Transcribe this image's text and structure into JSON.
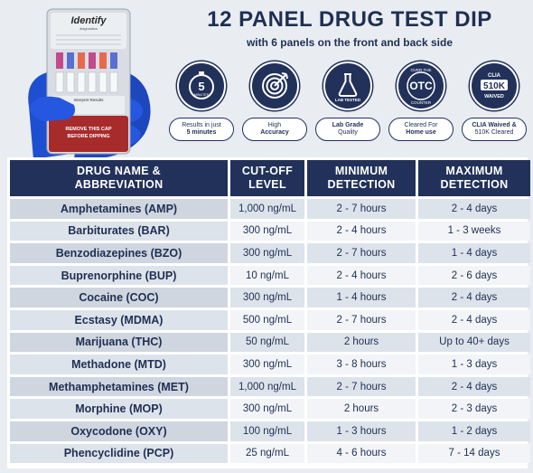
{
  "product": {
    "brand": "Identify",
    "brand_sub": "diagnostics",
    "strip_banner": "REMOVE THIS CAP BEFORE DIPPING",
    "result_label": "Interpret Results"
  },
  "header": {
    "title": "12 PANEL DRUG TEST DIP",
    "subtitle": "with 6 panels on the front and back side"
  },
  "badges": [
    {
      "icon": "stopwatch-icon",
      "circle_text": "5",
      "circle_sub": "MINUTES",
      "line1": "Results in just",
      "line2": "5 minutes"
    },
    {
      "icon": "target-icon",
      "circle_text": "",
      "circle_sub": "",
      "line1": "High",
      "line2": "Accuracy"
    },
    {
      "icon": "flask-icon",
      "circle_text": "",
      "circle_sub": "LAB TESTED",
      "line1": "Lab Grade",
      "line2": "Quality"
    },
    {
      "icon": "otc-seal-icon",
      "circle_text": "OTC",
      "circle_sub": "OVER THE COUNTER",
      "line1": "Cleared For",
      "line2": "Home use"
    },
    {
      "icon": "clia-seal-icon",
      "circle_text": "510K",
      "circle_sub": "CLIA WAIVED",
      "line1": "CLIA Waived &",
      "line2": "510K Cleared"
    }
  ],
  "table": {
    "headers": [
      [
        "DRUG NAME &",
        "ABBREVIATION"
      ],
      [
        "CUT-OFF",
        "LEVEL"
      ],
      [
        "MINIMUM",
        "DETECTION"
      ],
      [
        "MAXIMUM",
        "DETECTION"
      ]
    ],
    "rows": [
      [
        "Amphetamines (AMP)",
        "1,000 ng/mL",
        "2 - 7 hours",
        "2 - 4 days"
      ],
      [
        "Barbiturates (BAR)",
        "300 ng/mL",
        "2 - 4 hours",
        "1 - 3 weeks"
      ],
      [
        "Benzodiazepines (BZO)",
        "300 ng/mL",
        "2 - 7 hours",
        "1 - 4 days"
      ],
      [
        "Buprenorphine (BUP)",
        "10 ng/mL",
        "2 - 4 hours",
        "2 - 6 days"
      ],
      [
        "Cocaine (COC)",
        "300 ng/mL",
        "1 - 4 hours",
        "2 - 4 days"
      ],
      [
        "Ecstasy (MDMA)",
        "500 ng/mL",
        "2 - 7 hours",
        "2 - 4 days"
      ],
      [
        "Marijuana (THC)",
        "50 ng/mL",
        "2 hours",
        "Up to 40+ days"
      ],
      [
        "Methadone (MTD)",
        "300 ng/mL",
        "3 - 8 hours",
        "1 - 3 days"
      ],
      [
        "Methamphetamines (MET)",
        "1,000 ng/mL",
        "2 - 7 hours",
        "2 - 4 days"
      ],
      [
        "Morphine (MOP)",
        "300 ng/mL",
        "2 hours",
        "2 - 3 days"
      ],
      [
        "Oxycodone (OXY)",
        "100 ng/mL",
        "1 - 3 hours",
        "1 - 2 days"
      ],
      [
        "Phencyclidine (PCP)",
        "25 ng/mL",
        "4 - 6 hours",
        "7 - 14 days"
      ]
    ]
  },
  "colors": {
    "navy": "#22315a",
    "glove": "#1f4fd1",
    "row_dark": "#dde3eb",
    "row_light": "#f2f4f7"
  }
}
